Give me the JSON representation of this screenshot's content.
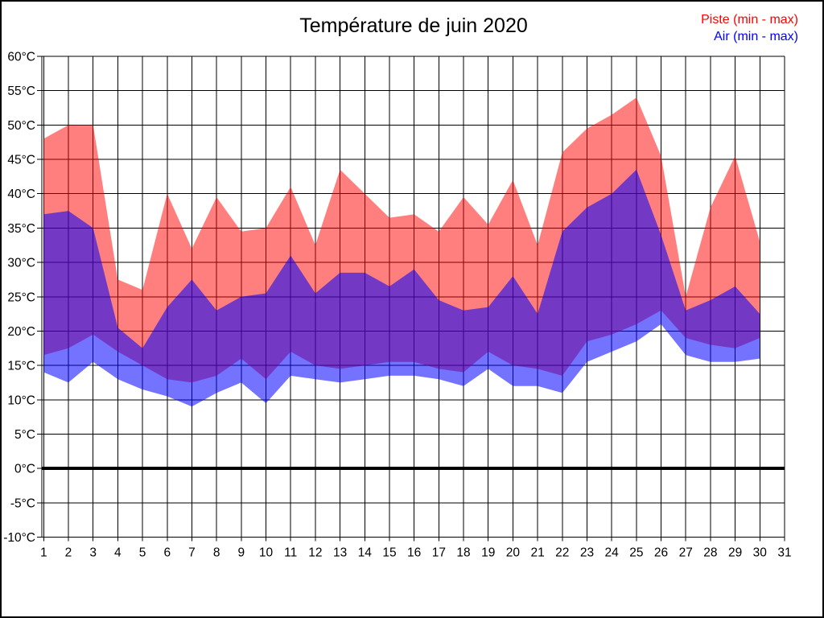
{
  "title": "Température de juin 2020",
  "legend": {
    "piste": "Piste (min - max)",
    "air": "Air (min - max)",
    "piste_color": "#ff0000",
    "air_color": "#0000ff"
  },
  "chart_data": {
    "type": "area",
    "title": "Température de juin 2020",
    "xlabel": "day of month",
    "ylabel": "temperature °C",
    "ylim": [
      -10,
      60
    ],
    "grid": true,
    "legend_position": "top-right",
    "zero_line": 0,
    "x": [
      1,
      2,
      3,
      4,
      5,
      6,
      7,
      8,
      9,
      10,
      11,
      12,
      13,
      14,
      15,
      16,
      17,
      18,
      19,
      20,
      21,
      22,
      23,
      24,
      25,
      26,
      27,
      28,
      29,
      30
    ],
    "x_ticks": [
      1,
      2,
      3,
      4,
      5,
      6,
      7,
      8,
      9,
      10,
      11,
      12,
      13,
      14,
      15,
      16,
      17,
      18,
      19,
      20,
      21,
      22,
      23,
      24,
      25,
      26,
      27,
      28,
      29,
      30,
      31
    ],
    "y_ticks": [
      {
        "v": 60,
        "label": "60°C"
      },
      {
        "v": 55,
        "label": "55°C"
      },
      {
        "v": 50,
        "label": "50°C"
      },
      {
        "v": 45,
        "label": "45°C"
      },
      {
        "v": 40,
        "label": "40°C"
      },
      {
        "v": 35,
        "label": "35°C"
      },
      {
        "v": 30,
        "label": "30°C"
      },
      {
        "v": 25,
        "label": "25°C"
      },
      {
        "v": 20,
        "label": "20°C"
      },
      {
        "v": 15,
        "label": "15°C"
      },
      {
        "v": 10,
        "label": "10°C"
      },
      {
        "v": 5,
        "label": "5°C"
      },
      {
        "v": 0,
        "label": "0°C"
      },
      {
        "v": -5,
        "label": "-5°C"
      },
      {
        "v": -10,
        "label": "-10°C"
      }
    ],
    "series": [
      {
        "name": "Piste (min - max)",
        "color": "#ff0000",
        "fill_opacity": 0.5,
        "max": [
          48,
          50,
          50,
          27.5,
          26,
          40,
          32,
          39.5,
          34.5,
          35,
          41,
          32.5,
          43.5,
          40,
          36.5,
          37,
          34.5,
          39.5,
          35.5,
          42,
          32.5,
          46,
          49.5,
          51.5,
          54,
          45.5,
          25,
          38,
          45.5,
          33
        ],
        "min": [
          16.5,
          17.5,
          19.5,
          17,
          15,
          13,
          12.5,
          13.5,
          16,
          13,
          17,
          15,
          14.5,
          15,
          15.5,
          15.5,
          14.5,
          14,
          17,
          15,
          14.5,
          13.5,
          18.5,
          19.5,
          21,
          23,
          19,
          18,
          17.5,
          19
        ]
      },
      {
        "name": "Air (min - max)",
        "color": "#0000ff",
        "fill_opacity": 0.55,
        "max": [
          37,
          37.5,
          35,
          20.5,
          17.5,
          23.5,
          27.5,
          23,
          25,
          25.5,
          31,
          25.5,
          28.5,
          28.5,
          26.5,
          29,
          24.5,
          23,
          23.5,
          28,
          22.5,
          34.5,
          38,
          40,
          43.5,
          34,
          23,
          24.5,
          26.5,
          22.5
        ],
        "min": [
          14,
          12.5,
          15.5,
          13,
          11.5,
          10.5,
          9,
          11,
          12.5,
          9.5,
          13.5,
          13,
          12.5,
          13,
          13.5,
          13.5,
          13,
          12,
          14.5,
          12,
          12,
          11,
          15.5,
          17,
          18.5,
          21,
          16.5,
          15.5,
          15.5,
          16
        ]
      }
    ]
  }
}
